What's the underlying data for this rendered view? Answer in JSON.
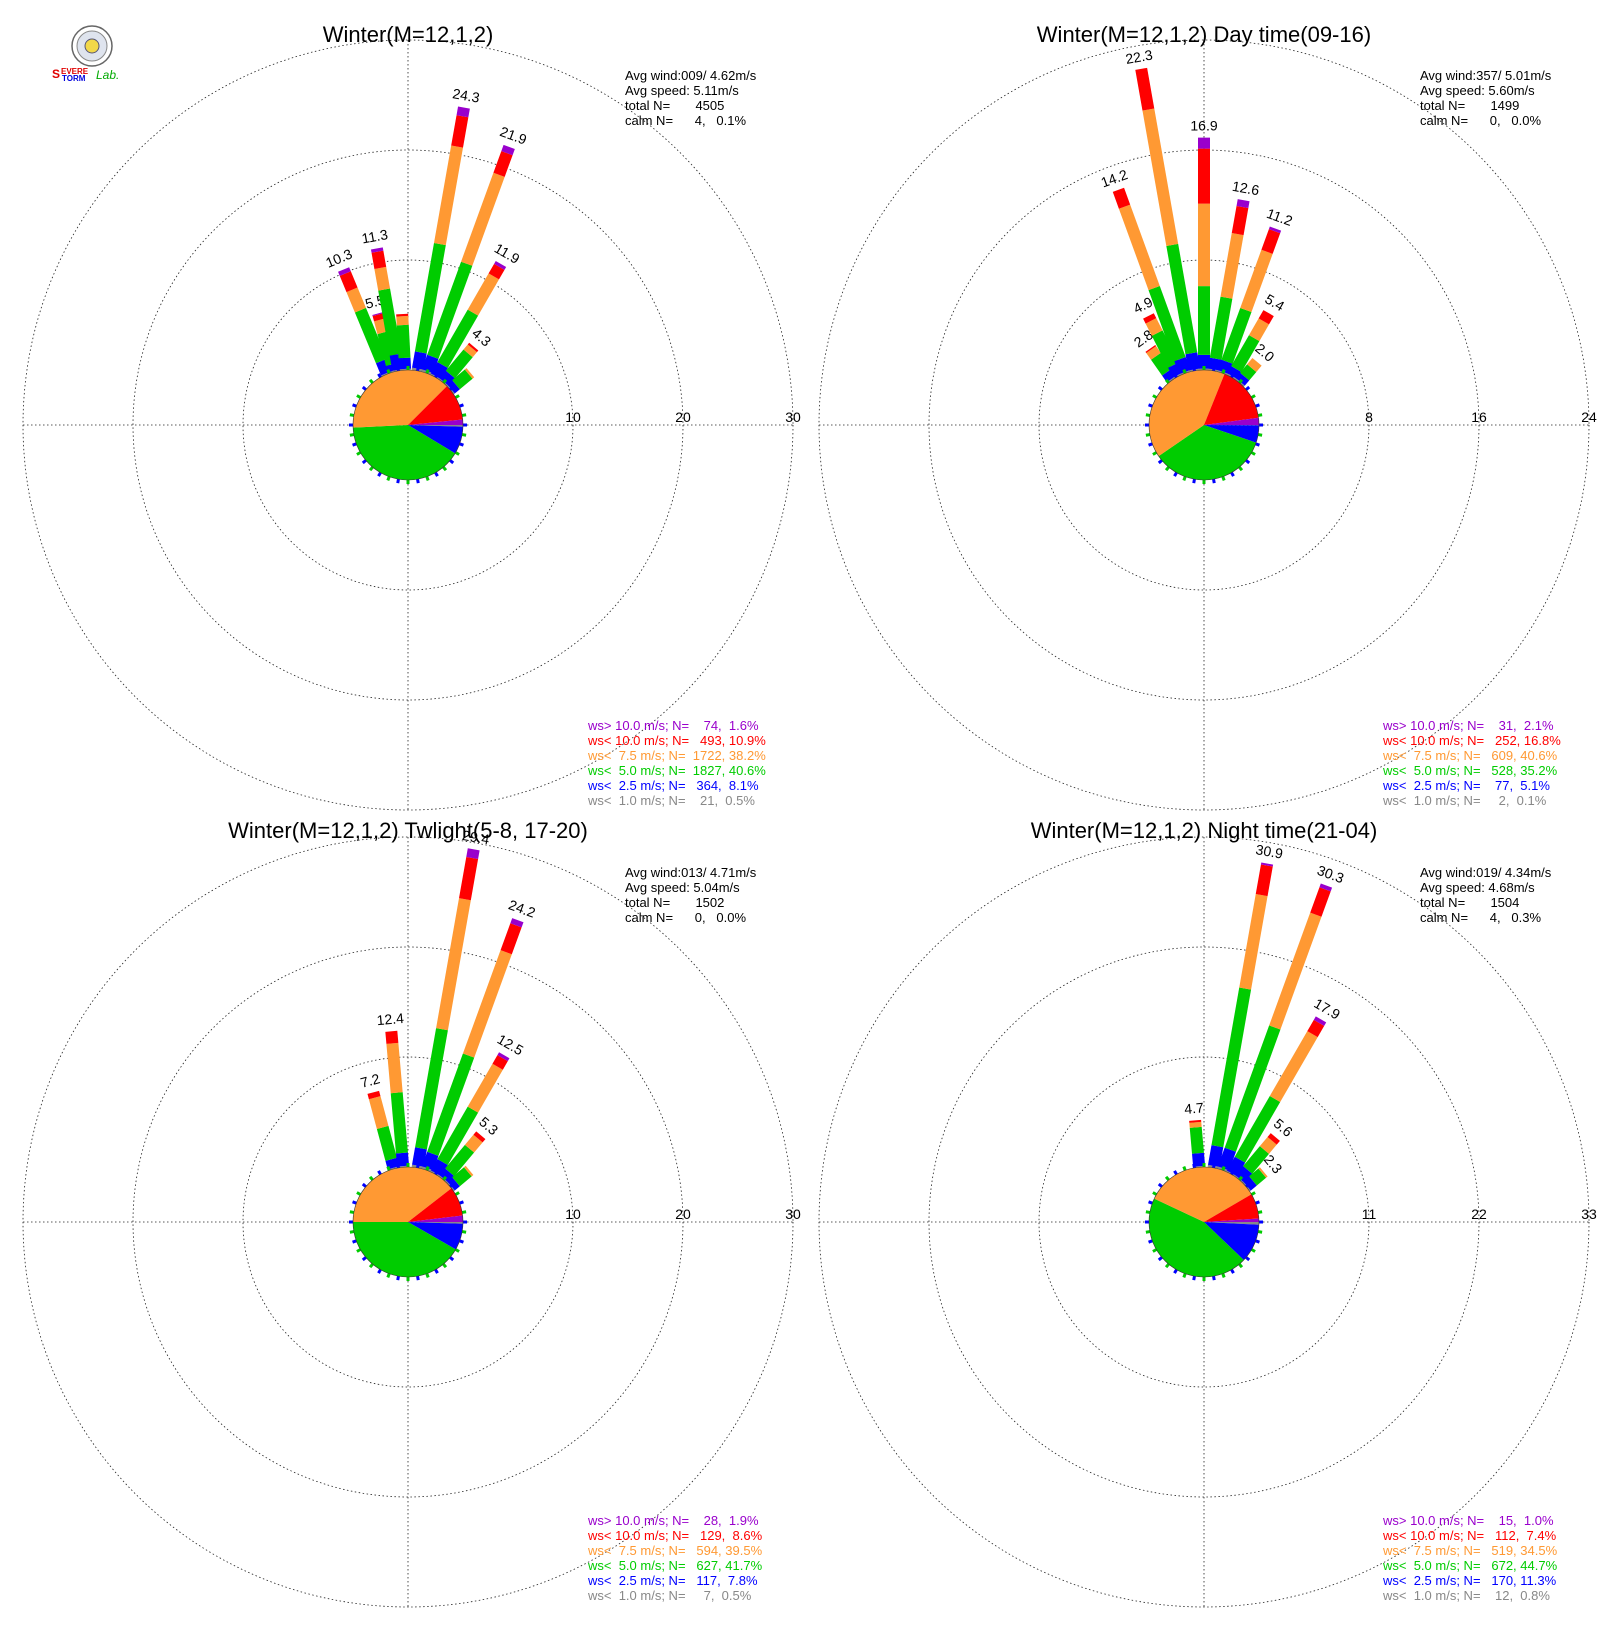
{
  "logo": {
    "name": "severe-storm-lab-logo",
    "text": "Severe Storm Lab."
  },
  "colors": {
    "gt10": "#9900cc",
    "lt10": "#ff0000",
    "lt7_5": "#ff9933",
    "lt5": "#00cc00",
    "lt2_5": "#0000ff",
    "lt1": "#888888"
  },
  "chart_data": [
    {
      "type": "windrose",
      "title": "Winter(M=12,1,2)",
      "rmax": 30,
      "ring_labels": [
        "10",
        "20",
        "30"
      ],
      "stats": [
        "Avg wind:009/ 4.62m/s",
        "Avg speed: 5.11m/s",
        "total N=       4505",
        "calm N=      4,   0.1%"
      ],
      "legend": [
        {
          "text": "ws> 10.0 m/s; N=    74,  1.6%",
          "color": "#9900cc"
        },
        {
          "text": "ws< 10.0 m/s; N=   493, 10.9%",
          "color": "#ff0000"
        },
        {
          "text": "ws<  7.5 m/s; N=  1722, 38.2%",
          "color": "#ff9933"
        },
        {
          "text": "ws<  5.0 m/s; N=  1827, 40.6%",
          "color": "#00cc00"
        },
        {
          "text": "ws<  2.5 m/s; N=   364,  8.1%",
          "color": "#0000ff"
        },
        {
          "text": "ws<  1.0 m/s; N=    21,  0.5%",
          "color": "#888888"
        }
      ],
      "pie": [
        0.5,
        8.1,
        40.6,
        38.2,
        10.9,
        1.6
      ],
      "directions": [
        {
          "dir": 337.5,
          "parts": [
            0.1,
            1.2,
            5.0,
            2.0,
            1.6,
            0.4
          ],
          "label": "10.3"
        },
        {
          "dir": 345,
          "parts": [
            0.1,
            0.6,
            3.0,
            1.2,
            0.5,
            0.1
          ],
          "label": "5.5"
        },
        {
          "dir": 350,
          "parts": [
            0.1,
            1.4,
            6.0,
            2.0,
            1.5,
            0.3
          ],
          "label": "11.3"
        },
        {
          "dir": 357,
          "parts": [
            0.1,
            1.0,
            3.0,
            0.8,
            0.2,
            0.0
          ],
          "label": ""
        },
        {
          "dir": 10,
          "parts": [
            0.2,
            1.5,
            10.0,
            9.0,
            2.8,
            0.8
          ],
          "label": "24.3"
        },
        {
          "dir": 20,
          "parts": [
            0.2,
            1.4,
            9.0,
            8.6,
            2.1,
            0.6
          ],
          "label": "21.9"
        },
        {
          "dir": 30,
          "parts": [
            0.1,
            1.2,
            5.5,
            3.8,
            1.0,
            0.3
          ],
          "label": "11.9"
        },
        {
          "dir": 40,
          "parts": [
            0.1,
            0.9,
            2.5,
            0.6,
            0.2,
            0.0
          ],
          "label": "4.3"
        },
        {
          "dir": 50,
          "parts": [
            0.1,
            0.6,
            1.5,
            0.2,
            0.0,
            0.0
          ],
          "label": ""
        }
      ]
    },
    {
      "type": "windrose",
      "title": "Winter(M=12,1,2) Day time(09-16)",
      "rmax": 24,
      "ring_labels": [
        "8",
        "16",
        "24"
      ],
      "stats": [
        "Avg wind:357/ 5.01m/s",
        "Avg speed: 5.60m/s",
        "total N=       1499",
        "calm N=      0,   0.0%"
      ],
      "legend": [
        {
          "text": "ws> 10.0 m/s; N=    31,  2.1%",
          "color": "#9900cc"
        },
        {
          "text": "ws< 10.0 m/s; N=   252, 16.8%",
          "color": "#ff0000"
        },
        {
          "text": "ws<  7.5 m/s; N=   609, 40.6%",
          "color": "#ff9933"
        },
        {
          "text": "ws<  5.0 m/s; N=   528, 35.2%",
          "color": "#00cc00"
        },
        {
          "text": "ws<  2.5 m/s; N=    77,  5.1%",
          "color": "#0000ff"
        },
        {
          "text": "ws<  1.0 m/s; N=     2,  0.1%",
          "color": "#888888"
        }
      ],
      "pie": [
        0.1,
        5.1,
        35.2,
        40.6,
        16.8,
        2.1
      ],
      "directions": [
        {
          "dir": 325,
          "parts": [
            0.1,
            0.6,
            1.4,
            0.6,
            0.1,
            0.0
          ],
          "label": "2.8"
        },
        {
          "dir": 333,
          "parts": [
            0.1,
            0.8,
            2.6,
            1.0,
            0.4,
            0.0
          ],
          "label": "4.9"
        },
        {
          "dir": 340,
          "parts": [
            0.1,
            1.0,
            5.5,
            6.3,
            1.3,
            0.0
          ],
          "label": "14.2"
        },
        {
          "dir": 350,
          "parts": [
            0.1,
            1.2,
            8.0,
            10.0,
            3.0,
            0.0
          ],
          "label": "22.3"
        },
        {
          "dir": 0,
          "parts": [
            0.1,
            1.0,
            5.0,
            6.0,
            4.0,
            0.8
          ],
          "label": "16.9"
        },
        {
          "dir": 10,
          "parts": [
            0.1,
            0.8,
            4.5,
            4.7,
            2.0,
            0.5
          ],
          "label": "12.6"
        },
        {
          "dir": 20,
          "parts": [
            0.1,
            0.8,
            4.0,
            4.5,
            1.6,
            0.2
          ],
          "label": "11.2"
        },
        {
          "dir": 30,
          "parts": [
            0.1,
            0.6,
            2.6,
            1.4,
            0.7,
            0.0
          ],
          "label": "5.4"
        },
        {
          "dir": 40,
          "parts": [
            0.1,
            0.5,
            0.8,
            0.6,
            0.0,
            0.0
          ],
          "label": "2.0"
        }
      ]
    },
    {
      "type": "windrose",
      "title": "Winter(M=12,1,2) Twlight(5-8, 17-20)",
      "rmax": 30,
      "ring_labels": [
        "10",
        "20",
        "30"
      ],
      "stats": [
        "Avg wind:013/ 4.71m/s",
        "Avg speed: 5.04m/s",
        "total N=       1502",
        "calm N=      0,   0.0%"
      ],
      "legend": [
        {
          "text": "ws> 10.0 m/s; N=    28,  1.9%",
          "color": "#9900cc"
        },
        {
          "text": "ws< 10.0 m/s; N=   129,  8.6%",
          "color": "#ff0000"
        },
        {
          "text": "ws<  7.5 m/s; N=   594, 39.5%",
          "color": "#ff9933"
        },
        {
          "text": "ws<  5.0 m/s; N=   627, 41.7%",
          "color": "#00cc00"
        },
        {
          "text": "ws<  2.5 m/s; N=   117,  7.8%",
          "color": "#0000ff"
        },
        {
          "text": "ws<  1.0 m/s; N=     7,  0.5%",
          "color": "#888888"
        }
      ],
      "pie": [
        0.5,
        7.8,
        41.7,
        39.5,
        8.6,
        1.9
      ],
      "directions": [
        {
          "dir": 345,
          "parts": [
            0.1,
            0.8,
            3.0,
            2.8,
            0.5,
            0.0
          ],
          "label": "7.2"
        },
        {
          "dir": 355,
          "parts": [
            0.1,
            1.2,
            5.5,
            4.5,
            1.1,
            0.0
          ],
          "label": "12.4"
        },
        {
          "dir": 10,
          "parts": [
            0.2,
            1.6,
            11.0,
            12.0,
            3.8,
            0.8
          ],
          "label": "29.4"
        },
        {
          "dir": 20,
          "parts": [
            0.2,
            1.4,
            9.5,
            10.0,
            2.6,
            0.5
          ],
          "label": "24.2"
        },
        {
          "dir": 30,
          "parts": [
            0.1,
            1.2,
            5.5,
            4.5,
            0.9,
            0.3
          ],
          "label": "12.5"
        },
        {
          "dir": 40,
          "parts": [
            0.1,
            0.8,
            2.8,
            1.2,
            0.4,
            0.0
          ],
          "label": "5.3"
        },
        {
          "dir": 50,
          "parts": [
            0.1,
            0.6,
            1.4,
            0.2,
            0.0,
            0.0
          ],
          "label": ""
        }
      ]
    },
    {
      "type": "windrose",
      "title": "Winter(M=12,1,2) Night time(21-04)",
      "rmax": 33,
      "ring_labels": [
        "11",
        "22",
        "33"
      ],
      "stats": [
        "Avg wind:019/ 4.34m/s",
        "Avg speed: 4.68m/s",
        "total N=       1504",
        "calm N=      4,   0.3%"
      ],
      "legend": [
        {
          "text": "ws> 10.0 m/s; N=    15,  1.0%",
          "color": "#9900cc"
        },
        {
          "text": "ws< 10.0 m/s; N=   112,  7.4%",
          "color": "#ff0000"
        },
        {
          "text": "ws<  7.5 m/s; N=   519, 34.5%",
          "color": "#ff9933"
        },
        {
          "text": "ws<  5.0 m/s; N=   672, 44.7%",
          "color": "#00cc00"
        },
        {
          "text": "ws<  2.5 m/s; N=   170, 11.3%",
          "color": "#0000ff"
        },
        {
          "text": "ws<  1.0 m/s; N=    12,  0.8%",
          "color": "#888888"
        }
      ],
      "pie": [
        0.8,
        11.3,
        44.7,
        34.5,
        7.4,
        1.0
      ],
      "directions": [
        {
          "dir": 355,
          "parts": [
            0.1,
            1.3,
            2.6,
            0.5,
            0.2,
            0.0
          ],
          "label": "4.7"
        },
        {
          "dir": 10,
          "parts": [
            0.2,
            2.0,
            16.0,
            9.5,
            3.0,
            0.2
          ],
          "label": "30.9"
        },
        {
          "dir": 20,
          "parts": [
            0.2,
            2.0,
            13.0,
            12.0,
            2.7,
            0.4
          ],
          "label": "30.3"
        },
        {
          "dir": 30,
          "parts": [
            0.1,
            1.6,
            7.0,
            7.5,
            1.3,
            0.4
          ],
          "label": "17.9"
        },
        {
          "dir": 40,
          "parts": [
            0.1,
            1.2,
            2.6,
            1.2,
            0.5,
            0.0
          ],
          "label": "5.6"
        },
        {
          "dir": 50,
          "parts": [
            0.1,
            0.8,
            1.2,
            0.2,
            0.0,
            0.0
          ],
          "label": "2.3"
        }
      ]
    }
  ]
}
